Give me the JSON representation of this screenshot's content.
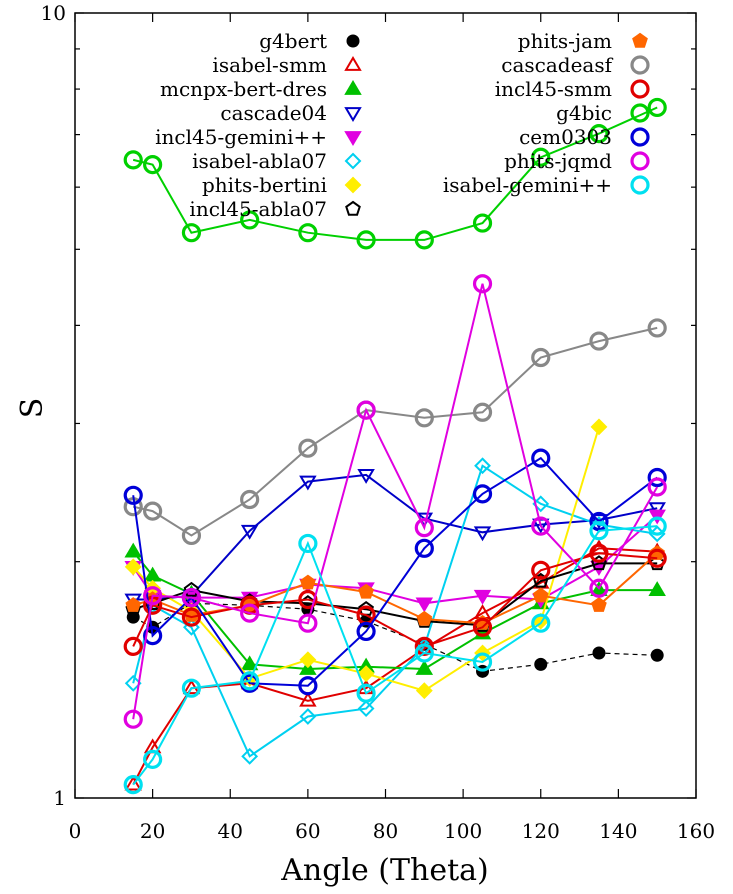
{
  "chart_data": {
    "type": "line",
    "xlabel": "Angle (Theta)",
    "ylabel": "S",
    "xlim": [
      0,
      160
    ],
    "ylim": [
      1,
      10
    ],
    "yscale": "log",
    "xticks": [
      0,
      20,
      40,
      60,
      80,
      100,
      120,
      140,
      160
    ],
    "yticks": [
      1,
      10
    ],
    "xtick_labels": [
      "0",
      "20",
      "40",
      "60",
      "80",
      "100",
      "120",
      "140",
      "160"
    ],
    "ytick_labels": [
      "1",
      "10"
    ],
    "legend_position": "top, two columns",
    "series": [
      {
        "name": "g4bert",
        "color": "#000000",
        "marker": "circle-filled",
        "dash": true,
        "x": [
          15,
          20,
          30,
          45,
          60,
          75,
          90,
          105,
          120,
          135,
          150
        ],
        "y": [
          1.7,
          1.65,
          1.77,
          1.76,
          1.74,
          1.68,
          1.57,
          1.45,
          1.48,
          1.53,
          1.52
        ]
      },
      {
        "name": "isabel-smm",
        "color": "#e00000",
        "marker": "triangle-open",
        "x": [
          15,
          20,
          30,
          45,
          60,
          75,
          90,
          105,
          120,
          135,
          150
        ],
        "y": [
          1.04,
          1.16,
          1.38,
          1.4,
          1.33,
          1.38,
          1.55,
          1.72,
          1.88,
          2.08,
          2.06
        ]
      },
      {
        "name": "mcnpx-bert-dres",
        "color": "#00c000",
        "marker": "triangle-filled",
        "x": [
          15,
          20,
          30,
          45,
          60,
          75,
          90,
          105,
          120,
          135,
          150
        ],
        "y": [
          2.06,
          1.92,
          1.82,
          1.48,
          1.46,
          1.47,
          1.46,
          1.62,
          1.77,
          1.84,
          1.84
        ]
      },
      {
        "name": "cascade04",
        "color": "#0000c8",
        "marker": "triangle-down-open",
        "x": [
          15,
          20,
          30,
          45,
          60,
          75,
          90,
          105,
          120,
          135,
          150
        ],
        "y": [
          1.79,
          1.79,
          1.81,
          2.19,
          2.53,
          2.58,
          2.27,
          2.18,
          2.23,
          2.26,
          2.34
        ]
      },
      {
        "name": "incl45-gemini++",
        "color": "#e000e0",
        "marker": "triangle-down-filled",
        "x": [
          15,
          20,
          30,
          45,
          60,
          75,
          90,
          105,
          120,
          135,
          150
        ],
        "y": [
          1.97,
          1.81,
          1.8,
          1.8,
          1.87,
          1.85,
          1.77,
          1.81,
          1.79,
          1.97,
          2.29
        ]
      },
      {
        "name": "isabel-abla07",
        "color": "#00d0f0",
        "marker": "diamond-open",
        "x": [
          15,
          20,
          30,
          45,
          60,
          75,
          90,
          105,
          120,
          135,
          150
        ],
        "y": [
          1.4,
          1.76,
          1.65,
          1.13,
          1.27,
          1.3,
          1.56,
          2.65,
          2.37,
          2.23,
          2.17
        ]
      },
      {
        "name": "phits-bertini",
        "color": "#ffee00",
        "marker": "diamond-filled",
        "x": [
          15,
          20,
          30,
          45,
          60,
          75,
          90,
          105,
          120,
          135
        ],
        "y": [
          1.97,
          1.85,
          1.73,
          1.42,
          1.5,
          1.44,
          1.37,
          1.53,
          1.68,
          2.97
        ]
      },
      {
        "name": "incl45-abla07",
        "color": "#000000",
        "marker": "pentagon-open",
        "x": [
          15,
          20,
          30,
          45,
          60,
          75,
          90,
          105,
          120,
          135,
          150
        ],
        "y": [
          1.74,
          1.77,
          1.84,
          1.78,
          1.77,
          1.74,
          1.68,
          1.66,
          1.89,
          1.99,
          1.99
        ]
      },
      {
        "name": "phits-jam",
        "color": "#ff6600",
        "marker": "pentagon-filled",
        "x": [
          15,
          20,
          30,
          45,
          60,
          75,
          90,
          105,
          120,
          135,
          150
        ],
        "y": [
          1.76,
          1.79,
          1.71,
          1.76,
          1.88,
          1.83,
          1.69,
          1.67,
          1.81,
          1.76,
          2.05
        ]
      },
      {
        "name": "cascadeasf",
        "color": "#888888",
        "marker": "circle-open",
        "x": [
          15,
          20,
          30,
          45,
          60,
          75,
          90,
          105,
          120,
          135,
          150
        ],
        "y": [
          2.35,
          2.32,
          2.16,
          2.4,
          2.79,
          3.12,
          3.05,
          3.1,
          3.64,
          3.82,
          3.97
        ]
      },
      {
        "name": "incl45-smm",
        "color": "#e00000",
        "marker": "circle-open",
        "x": [
          15,
          20,
          30,
          45,
          60,
          75,
          90,
          105,
          120,
          135,
          150
        ],
        "y": [
          1.56,
          1.76,
          1.7,
          1.76,
          1.79,
          1.71,
          1.56,
          1.65,
          1.95,
          2.05,
          2.02
        ]
      },
      {
        "name": "g4bic",
        "color": "#00d000",
        "marker": "circle-open",
        "x": [
          15,
          20,
          30,
          45,
          60,
          75,
          90,
          105,
          120,
          135,
          150
        ],
        "y": [
          6.5,
          6.41,
          5.25,
          5.45,
          5.25,
          5.14,
          5.14,
          5.4,
          6.55,
          7.02,
          7.58
        ]
      },
      {
        "name": "cem0303",
        "color": "#0000d8",
        "marker": "circle-open",
        "x": [
          15,
          20,
          30,
          45,
          60,
          75,
          90,
          105,
          120,
          135,
          150
        ],
        "y": [
          2.43,
          1.61,
          1.8,
          1.4,
          1.39,
          1.63,
          2.08,
          2.44,
          2.71,
          2.25,
          2.56
        ]
      },
      {
        "name": "phits-jqmd",
        "color": "#e000e0",
        "marker": "circle-open",
        "x": [
          15,
          20,
          30,
          45,
          60,
          75,
          90,
          105,
          120,
          135,
          150
        ],
        "y": [
          1.26,
          1.81,
          1.8,
          1.72,
          1.67,
          3.12,
          2.21,
          4.52,
          2.22,
          1.85,
          2.49
        ]
      },
      {
        "name": "isabel-gemini++",
        "color": "#00e0f0",
        "marker": "circle-open",
        "x": [
          15,
          20,
          30,
          45,
          60,
          75,
          90,
          105,
          120,
          135,
          150
        ],
        "y": [
          1.04,
          1.12,
          1.38,
          1.41,
          2.11,
          1.36,
          1.53,
          1.49,
          1.67,
          2.19,
          2.22
        ]
      }
    ]
  }
}
